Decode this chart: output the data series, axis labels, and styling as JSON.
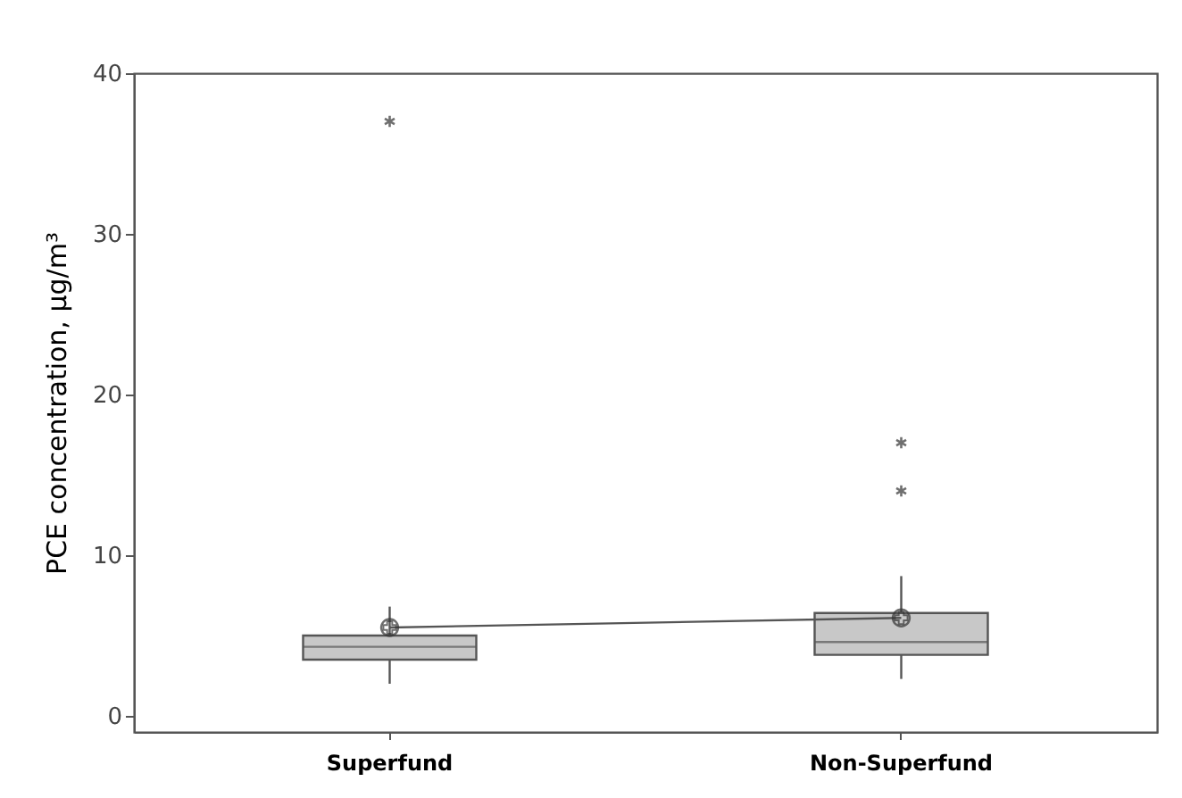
{
  "chart_data": {
    "type": "box",
    "ylabel": "PCE concentration, μg/m³",
    "categories": [
      "Superfund",
      "Non-Superfund"
    ],
    "boxes": [
      {
        "low": 2,
        "q1": 3.5,
        "median": 4.3,
        "q3": 5,
        "high": 6.8,
        "mean": 5.5,
        "outliers": [
          37
        ]
      },
      {
        "low": 2.3,
        "q1": 3.8,
        "median": 4.6,
        "q3": 6.4,
        "high": 8.7,
        "mean": 6.1,
        "outliers": [
          14,
          17
        ]
      }
    ],
    "series": [
      {
        "type": "line",
        "color": "#555555",
        "values": [
          5.5,
          6.1
        ]
      }
    ],
    "color": "#c8c8c8",
    "ylim": [
      -1,
      40
    ],
    "yticks": [
      0,
      10,
      20,
      30,
      40
    ],
    "grid": false
  }
}
